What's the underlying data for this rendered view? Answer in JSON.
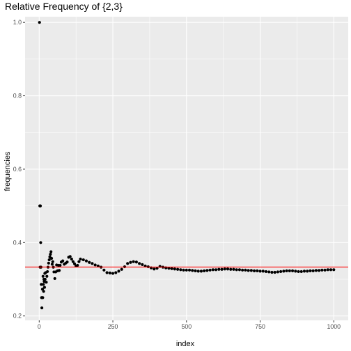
{
  "chart_data": {
    "type": "scatter",
    "title": "Relative Frequency of {2,3}",
    "xlabel": "index",
    "ylabel": "frequencies",
    "xlim": [
      -48,
      1049
    ],
    "ylim": [
      0.188,
      1.0155
    ],
    "x_ticks": [
      0,
      250,
      500,
      750,
      1000
    ],
    "x_tick_labels": [
      "0",
      "250",
      "500",
      "750",
      "1000"
    ],
    "y_ticks": [
      0.2,
      0.4,
      0.6,
      0.8,
      1.0
    ],
    "y_tick_labels": [
      "0.2",
      "0.4",
      "0.6",
      "0.8",
      "1.0"
    ],
    "grid": true,
    "reference_line": {
      "y": 0.3333,
      "color": "#ff0000"
    },
    "series": [
      {
        "color": "#000000",
        "x": [
          1,
          2,
          3,
          4,
          5,
          6,
          7,
          8,
          9,
          10,
          11,
          12,
          13,
          14,
          15,
          16,
          17,
          18,
          19,
          20,
          22,
          24,
          26,
          28,
          30,
          32,
          34,
          36,
          38,
          40,
          42,
          44,
          46,
          48,
          50,
          53,
          56,
          59,
          62,
          65,
          68,
          71,
          75,
          80,
          85,
          90,
          95,
          100,
          105,
          110,
          115,
          120,
          125,
          130,
          135,
          140,
          150,
          160,
          170,
          180,
          190,
          200,
          210,
          220,
          230,
          240,
          250,
          260,
          270,
          280,
          290,
          300,
          310,
          320,
          330,
          340,
          350,
          360,
          370,
          380,
          390,
          400,
          410,
          420,
          430,
          440,
          450,
          460,
          470,
          480,
          490,
          500,
          510,
          520,
          530,
          540,
          550,
          560,
          570,
          580,
          590,
          600,
          610,
          620,
          630,
          640,
          650,
          660,
          670,
          680,
          690,
          700,
          710,
          720,
          730,
          740,
          750,
          760,
          770,
          780,
          790,
          800,
          810,
          820,
          830,
          840,
          850,
          860,
          870,
          880,
          890,
          900,
          910,
          920,
          930,
          940,
          950,
          960,
          970,
          980,
          990,
          1000
        ],
        "y": [
          1.0,
          0.5,
          0.333,
          0.5,
          0.4,
          0.333,
          0.286,
          0.25,
          0.222,
          0.25,
          0.273,
          0.25,
          0.308,
          0.286,
          0.267,
          0.3,
          0.294,
          0.278,
          0.316,
          0.3,
          0.318,
          0.292,
          0.308,
          0.321,
          0.333,
          0.344,
          0.353,
          0.361,
          0.368,
          0.375,
          0.357,
          0.341,
          0.348,
          0.333,
          0.32,
          0.302,
          0.32,
          0.339,
          0.323,
          0.338,
          0.324,
          0.338,
          0.347,
          0.35,
          0.341,
          0.344,
          0.347,
          0.36,
          0.362,
          0.355,
          0.348,
          0.342,
          0.336,
          0.338,
          0.348,
          0.355,
          0.353,
          0.35,
          0.346,
          0.343,
          0.339,
          0.336,
          0.333,
          0.325,
          0.318,
          0.317,
          0.316,
          0.318,
          0.322,
          0.327,
          0.334,
          0.343,
          0.346,
          0.348,
          0.347,
          0.343,
          0.34,
          0.336,
          0.334,
          0.331,
          0.328,
          0.33,
          0.335,
          0.333,
          0.331,
          0.33,
          0.329,
          0.328,
          0.327,
          0.326,
          0.325,
          0.325,
          0.325,
          0.324,
          0.323,
          0.322,
          0.322,
          0.323,
          0.324,
          0.325,
          0.326,
          0.326,
          0.327,
          0.327,
          0.328,
          0.328,
          0.327,
          0.327,
          0.326,
          0.326,
          0.325,
          0.325,
          0.324,
          0.324,
          0.323,
          0.323,
          0.322,
          0.322,
          0.321,
          0.32,
          0.319,
          0.319,
          0.32,
          0.321,
          0.322,
          0.323,
          0.323,
          0.323,
          0.322,
          0.321,
          0.321,
          0.322,
          0.322,
          0.323,
          0.323,
          0.324,
          0.324,
          0.325,
          0.325,
          0.326,
          0.326,
          0.326
        ]
      }
    ]
  }
}
